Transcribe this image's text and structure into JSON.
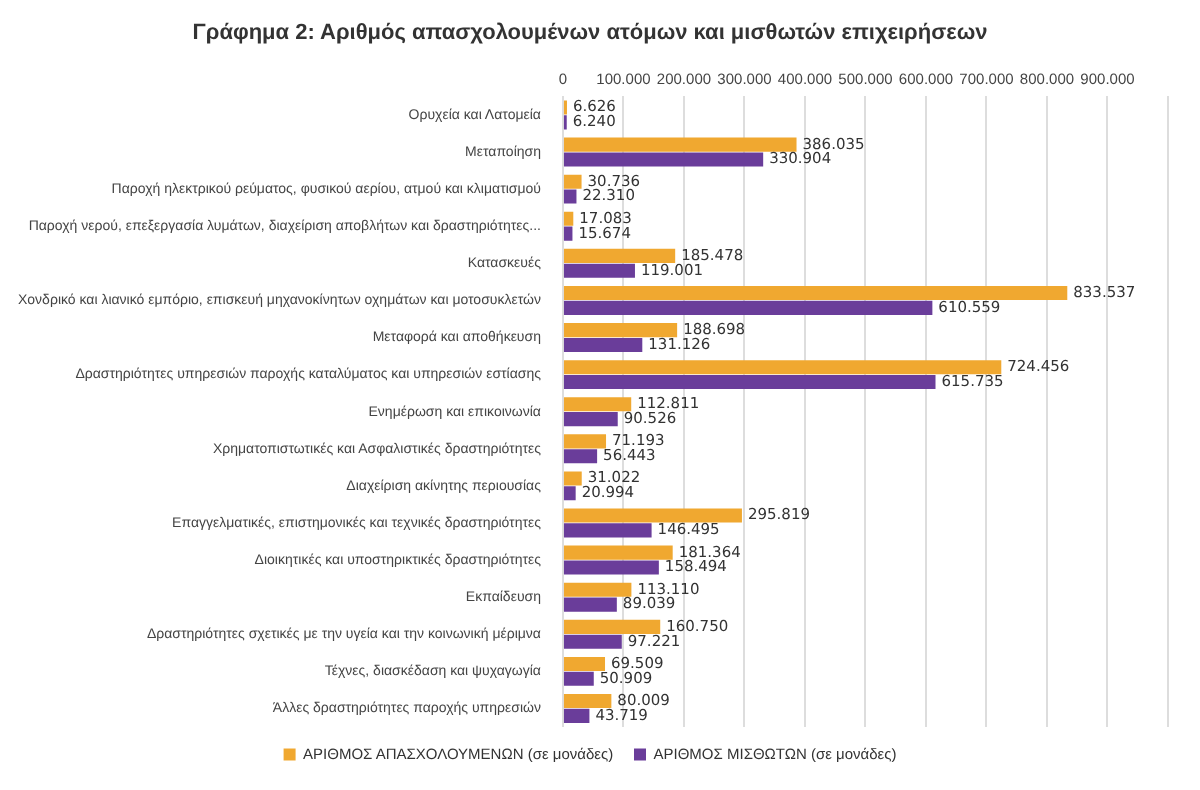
{
  "chart_data": {
    "type": "bar",
    "orientation": "horizontal",
    "title": "Γράφημα 2: Αριθμός απασχολουμένων ατόμων και μισθωτών επιχειρήσεων",
    "categories": [
      "Ορυχεία και Λατομεία",
      "Μεταποίηση",
      "Παροχή ηλεκτρικού ρεύματος, φυσικού αερίου, ατμού και κλιματισμού",
      "Παροχή νερού, επεξεργασία λυμάτων, διαχείριση αποβλήτων και δραστηριότητες...",
      "Κατασκευές",
      "Χονδρικό και λιανικό εμπόριο, επισκευή μηχανοκίνητων οχημάτων και μοτοσυκλετών",
      "Μεταφορά και αποθήκευση",
      "Δραστηριότητες υπηρεσιών παροχής καταλύματος και υπηρεσιών εστίασης",
      "Ενημέρωση και επικοινωνία",
      "Χρηματοπιστωτικές και Ασφαλιστικές δραστηριότητες",
      "Διαχείριση ακίνητης περιουσίας",
      "Επαγγελματικές, επιστημονικές και τεχνικές δραστηριότητες",
      "Διοικητικές και υποστηρικτικές δραστηριότητες",
      "Εκπαίδευση",
      "Δραστηριότητες σχετικές με την υγεία και την κοινωνική μέριμνα",
      "Τέχνες, διασκέδαση και ψυχαγωγία",
      "Άλλες δραστηριότητες παροχής υπηρεσιών"
    ],
    "series": [
      {
        "name": "ΑΡΙΘΜΟΣ ΑΠΑΣΧΟΛΟΥΜΕΝΩΝ (σε μονάδες)",
        "color": "#f0a830",
        "values": [
          6626,
          386035,
          30736,
          17083,
          185478,
          833537,
          188698,
          724456,
          112811,
          71193,
          31022,
          295819,
          181364,
          113110,
          160750,
          69509,
          80009
        ],
        "value_labels": [
          "6.626",
          "386.035",
          "30.736",
          "17.083",
          "185.478",
          "833.537",
          "188.698",
          "724.456",
          "112.811",
          "71.193",
          "31.022",
          "295.819",
          "181.364",
          "113.110",
          "160.750",
          "69.509",
          "80.009"
        ]
      },
      {
        "name": "ΑΡΙΘΜΟΣ ΜΙΣΘΩΤΩΝ (σε μονάδες)",
        "color": "#6a3d9a",
        "values": [
          6240,
          330904,
          22310,
          15674,
          119001,
          610559,
          131126,
          615735,
          90526,
          56443,
          20994,
          146495,
          158494,
          89039,
          97221,
          50909,
          43719
        ],
        "value_labels": [
          "6.240",
          "330.904",
          "22.310",
          "15.674",
          "119.001",
          "610.559",
          "131.126",
          "615.735",
          "90.526",
          "56.443",
          "20.994",
          "146.495",
          "158.494",
          "89.039",
          "97.221",
          "50.909",
          "43.719"
        ]
      }
    ],
    "xlim": [
      0,
      1000000
    ],
    "xticks": [
      0,
      {
        "value": 100000,
        "label": "100.000"
      },
      {
        "value": 200000,
        "label": "200.000"
      },
      {
        "value": 300000,
        "label": "300.000"
      },
      {
        "value": 400000,
        "label": "400.000"
      },
      {
        "value": 500000,
        "label": "500.000"
      },
      {
        "value": 600000,
        "label": "600.000"
      },
      {
        "value": 700000,
        "label": "700.000"
      },
      {
        "value": 800000,
        "label": "800.000"
      },
      {
        "value": 900000,
        "label": "900.000"
      },
      {
        "value": 1000000,
        "label": null
      }
    ],
    "grid": "x",
    "legend": "bottom"
  }
}
